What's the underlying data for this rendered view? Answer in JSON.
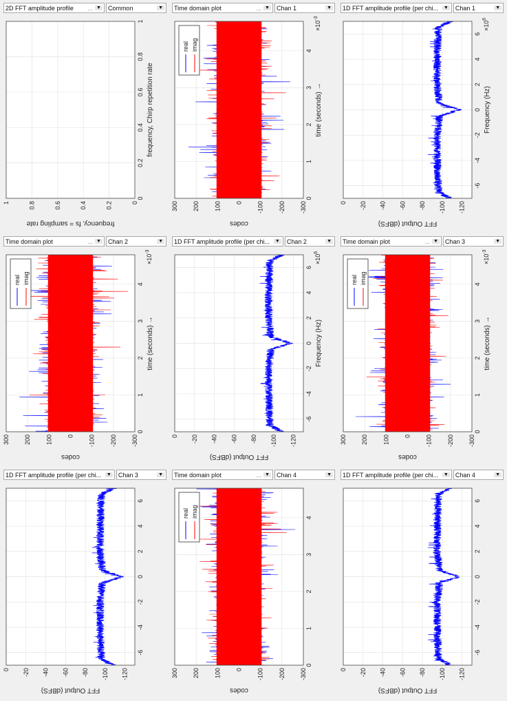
{
  "colors": {
    "real": "#0000ff",
    "imag": "#ff0000",
    "fft": "#0000ff",
    "grid": "#e3e3e3",
    "axes": "#444444"
  },
  "panels": [
    {
      "title": "2D FFT amplitude profile",
      "more": "...",
      "channel": "Common"
    },
    {
      "title": "Time domain plot",
      "more": "...",
      "channel": "Chan 1"
    },
    {
      "title": "1D FFT amplitude profile (per chi...",
      "more": "",
      "channel": "Chan 1"
    },
    {
      "title": "Time domain plot",
      "more": "...",
      "channel": "Chan 2"
    },
    {
      "title": "1D FFT amplitude profile (per chi...",
      "more": "",
      "channel": "Chan 2"
    },
    {
      "title": "Time domain plot",
      "more": "...",
      "channel": "Chan 3"
    },
    {
      "title": "1D FFT amplitude profile (per chi...",
      "more": "",
      "channel": "Chan 3"
    },
    {
      "title": "Time domain plot",
      "more": "...",
      "channel": "Chan 4"
    },
    {
      "title": "1D FFT amplitude profile (per chi...",
      "more": "",
      "channel": "Chan 4"
    }
  ],
  "chart_data": [
    {
      "type": "line",
      "kind": "2d",
      "xlabel": "frequency, Chirp repetition rate",
      "ylabel": "frequency, fs = sampling rate",
      "xlim": [
        0,
        1
      ],
      "ylim": [
        0,
        1
      ],
      "xticks": [
        0,
        0.2,
        0.4,
        0.6,
        0.8,
        1
      ],
      "yticks": [
        0,
        0.2,
        0.4,
        0.6,
        0.8,
        1
      ],
      "grid": true,
      "series": []
    },
    {
      "type": "line",
      "kind": "time",
      "channel": "Chan 1",
      "xlabel": "time  (seconds) →",
      "ylabel": "codes",
      "xexp": "×10",
      "xexp_power": "-3",
      "xlim": [
        0,
        4.8
      ],
      "ylim": [
        -300,
        300
      ],
      "xticks": [
        0,
        1,
        2,
        3,
        4
      ],
      "yticks": [
        300,
        200,
        100,
        0,
        -100,
        -200,
        -300
      ],
      "grid": true,
      "legend": {
        "placement": "top-right",
        "entries": [
          "real",
          "imag"
        ]
      },
      "series": [
        {
          "name": "real",
          "approx_range": [
            -250,
            250
          ],
          "typical_band": [
            -150,
            150
          ]
        },
        {
          "name": "imag",
          "approx_range": [
            -250,
            250
          ],
          "typical_band": [
            -130,
            130
          ]
        }
      ]
    },
    {
      "type": "line",
      "kind": "fft",
      "channel": "Chan 1",
      "xlabel": "Frequency (Hz)",
      "ylabel": "FFT Output (dBFS)",
      "xexp": "×10",
      "xexp_power": "6",
      "xlim": [
        -7,
        7
      ],
      "ylim": [
        -130,
        0
      ],
      "xticks": [
        -6,
        -4,
        -2,
        0,
        2,
        4,
        6
      ],
      "yticks": [
        0,
        -20,
        -40,
        -60,
        -80,
        -100,
        -120
      ],
      "grid": true,
      "series": [
        {
          "x": [
            -7,
            -6.5,
            -4,
            -2,
            -0.5,
            0,
            0.5,
            2,
            4,
            6.5,
            7
          ],
          "y": [
            -108,
            -96,
            -95,
            -95,
            -97,
            -117,
            -97,
            -95,
            -95,
            -96,
            -108
          ]
        }
      ]
    },
    {
      "type": "line",
      "kind": "time",
      "channel": "Chan 2",
      "xlabel": "time  (seconds) →",
      "ylabel": "codes",
      "xexp": "×10",
      "xexp_power": "-3",
      "xlim": [
        0,
        4.8
      ],
      "ylim": [
        -300,
        300
      ],
      "xticks": [
        0,
        1,
        2,
        3,
        4
      ],
      "yticks": [
        300,
        200,
        100,
        0,
        -100,
        -200,
        -300
      ],
      "grid": true,
      "legend": {
        "placement": "top-right",
        "entries": [
          "real",
          "imag"
        ]
      },
      "series": [
        {
          "name": "real",
          "approx_range": [
            -250,
            250
          ],
          "typical_band": [
            -150,
            150
          ]
        },
        {
          "name": "imag",
          "approx_range": [
            -250,
            250
          ],
          "typical_band": [
            -130,
            130
          ]
        }
      ]
    },
    {
      "type": "line",
      "kind": "fft",
      "channel": "Chan 2",
      "xlabel": "Frequency (Hz)",
      "ylabel": "FFT Output (dBFS)",
      "xexp": "×10",
      "xexp_power": "6",
      "xlim": [
        -7,
        7
      ],
      "ylim": [
        -130,
        0
      ],
      "xticks": [
        -6,
        -4,
        -2,
        0,
        2,
        4,
        6
      ],
      "yticks": [
        0,
        -20,
        -40,
        -60,
        -80,
        -100,
        -120
      ],
      "grid": true,
      "series": [
        {
          "x": [
            -7,
            -6.5,
            -4,
            -2,
            -0.5,
            0,
            0.5,
            2,
            4,
            6.5,
            7
          ],
          "y": [
            -108,
            -96,
            -95,
            -95,
            -97,
            -117,
            -97,
            -95,
            -95,
            -96,
            -108
          ]
        }
      ]
    },
    {
      "type": "line",
      "kind": "time",
      "channel": "Chan 3",
      "xlabel": "time  (seconds) →",
      "ylabel": "codes",
      "xexp": "×10",
      "xexp_power": "-3",
      "xlim": [
        0,
        4.8
      ],
      "ylim": [
        -300,
        300
      ],
      "xticks": [
        0,
        1,
        2,
        3,
        4
      ],
      "yticks": [
        300,
        200,
        100,
        0,
        -100,
        -200,
        -300
      ],
      "grid": true,
      "legend": {
        "placement": "top-right",
        "entries": [
          "real",
          "imag"
        ]
      },
      "series": [
        {
          "name": "real",
          "approx_range": [
            -250,
            250
          ],
          "typical_band": [
            -150,
            150
          ]
        },
        {
          "name": "imag",
          "approx_range": [
            -250,
            250
          ],
          "typical_band": [
            -130,
            130
          ]
        }
      ]
    },
    {
      "type": "line",
      "kind": "fft",
      "channel": "Chan 3",
      "xlabel": "",
      "ylabel": "FFT Output (dBFS)",
      "xexp": "",
      "xexp_power": "",
      "xlim": [
        -7,
        7
      ],
      "ylim": [
        -130,
        0
      ],
      "xticks": [
        -6,
        -4,
        -2,
        0,
        2,
        4,
        6
      ],
      "yticks": [
        0,
        -20,
        -40,
        -60,
        -80,
        -100,
        -120
      ],
      "grid": true,
      "series": [
        {
          "x": [
            -7,
            -6.5,
            -4,
            -2,
            -0.5,
            0,
            0.5,
            2,
            4,
            6.5,
            7
          ],
          "y": [
            -108,
            -96,
            -95,
            -95,
            -97,
            -117,
            -97,
            -95,
            -95,
            -96,
            -108
          ]
        }
      ]
    },
    {
      "type": "line",
      "kind": "time",
      "channel": "Chan 4",
      "xlabel": "",
      "ylabel": "codes",
      "xexp": "",
      "xexp_power": "",
      "xlim": [
        0,
        4.8
      ],
      "ylim": [
        -300,
        300
      ],
      "xticks": [
        0,
        1,
        2,
        3,
        4
      ],
      "yticks": [
        300,
        200,
        100,
        0,
        -100,
        -200,
        -300
      ],
      "grid": true,
      "legend": {
        "placement": "top-right",
        "entries": [
          "real",
          "imag"
        ]
      },
      "series": [
        {
          "name": "real",
          "approx_range": [
            -250,
            250
          ],
          "typical_band": [
            -150,
            150
          ]
        },
        {
          "name": "imag",
          "approx_range": [
            -250,
            250
          ],
          "typical_band": [
            -130,
            130
          ]
        }
      ]
    },
    {
      "type": "line",
      "kind": "fft",
      "channel": "Chan 4",
      "xlabel": "",
      "ylabel": "FFT Output (dBFS)",
      "xexp": "",
      "xexp_power": "",
      "xlim": [
        -7,
        7
      ],
      "ylim": [
        -130,
        0
      ],
      "xticks": [
        -6,
        -4,
        -2,
        0,
        2,
        4,
        6
      ],
      "yticks": [
        0,
        -20,
        -40,
        -60,
        -80,
        -100,
        -120
      ],
      "grid": true,
      "series": [
        {
          "x": [
            -7,
            -6.5,
            -4,
            -2,
            -0.5,
            0,
            0.5,
            2,
            4,
            6.5,
            7
          ],
          "y": [
            -108,
            -96,
            -95,
            -95,
            -97,
            -117,
            -97,
            -95,
            -95,
            -96,
            -108
          ]
        }
      ]
    }
  ]
}
